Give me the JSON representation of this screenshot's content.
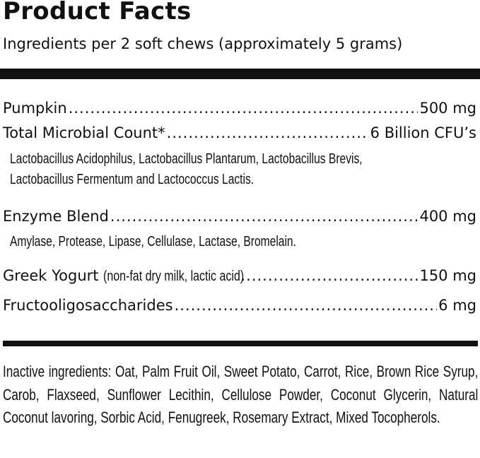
{
  "title": "Product Facts",
  "subtitle": "Ingredients per 2 soft chews (approximately 5 grams)",
  "ingredients": [
    {
      "name": "Pumpkin",
      "amount": "500 mg"
    },
    {
      "name": "Total Microbial Count*",
      "amount": "6 Billion CFU’s",
      "details": [
        "Lactobacillus Acidophilus, Lactobacillus Plantarum, Lactobacillus Brevis,",
        "Lactobacillus Fermentum and Lactococcus Lactis."
      ]
    },
    {
      "name": "Enzyme Blend",
      "amount": "400 mg",
      "details": [
        "Amylase, Protease, Lipase, Cellulase, Lactase, Bromelain."
      ]
    },
    {
      "name": "Greek Yogurt",
      "qualifier": "(non-fat dry milk, lactic acid)",
      "amount": "150 mg"
    },
    {
      "name": "Fructooligosaccharides",
      "amount": "6 mg"
    }
  ],
  "inactive": "Inactive ingredients: Oat, Palm Fruit Oil, Sweet Potato, Carrot, Rice, Brown Rice Syrup, Carob, Flaxseed, Sunflower Lecithin, Cellulose Powder, Coconut Glycerin, Natural Coconut lavoring, Sorbic Acid, Fenugreek, Rosemary Extract, Mixed Tocopherols."
}
